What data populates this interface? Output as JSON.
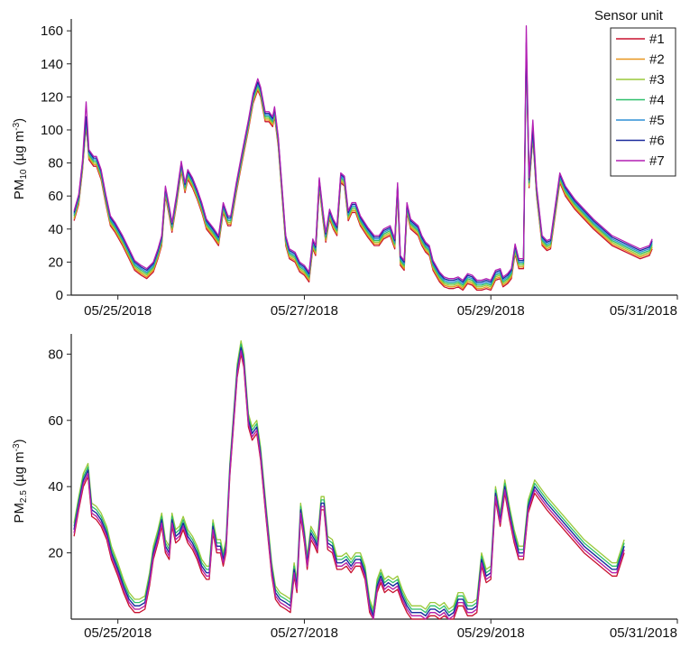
{
  "chart_data": [
    {
      "type": "line",
      "ylabel": {
        "main": "PM",
        "sub": "10",
        "unit_open": " (µg m",
        "unit_sup": "-3",
        "unit_close": ")"
      },
      "ylim": [
        0,
        165
      ],
      "yticks": [
        0,
        20,
        40,
        60,
        80,
        100,
        120,
        140,
        160
      ],
      "xlim": [
        0,
        6.5
      ],
      "xticks": [
        {
          "x": 0.5,
          "label": "05/25/2018"
        },
        {
          "x": 2.5,
          "label": "05/27/2018"
        },
        {
          "x": 4.5,
          "label": "05/29/2018"
        },
        {
          "x": 6.5,
          "label": "05/31/2018"
        }
      ],
      "x_unit": "days from start of 05/24/2018",
      "grid": false,
      "legend": {
        "title": "Sensor unit",
        "position": "top-right"
      },
      "base": [
        [
          0.03,
          45
        ],
        [
          0.08,
          55
        ],
        [
          0.12,
          75
        ],
        [
          0.16,
          103
        ],
        [
          0.19,
          82
        ],
        [
          0.24,
          78
        ],
        [
          0.27,
          78
        ],
        [
          0.32,
          70
        ],
        [
          0.37,
          55
        ],
        [
          0.42,
          42
        ],
        [
          0.47,
          38
        ],
        [
          0.55,
          30
        ],
        [
          0.62,
          22
        ],
        [
          0.68,
          15
        ],
        [
          0.75,
          12
        ],
        [
          0.81,
          10
        ],
        [
          0.88,
          14
        ],
        [
          0.93,
          22
        ],
        [
          0.97,
          30
        ],
        [
          1.01,
          60
        ],
        [
          1.05,
          48
        ],
        [
          1.08,
          38
        ],
        [
          1.13,
          55
        ],
        [
          1.18,
          75
        ],
        [
          1.22,
          62
        ],
        [
          1.25,
          70
        ],
        [
          1.3,
          65
        ],
        [
          1.35,
          58
        ],
        [
          1.4,
          50
        ],
        [
          1.45,
          40
        ],
        [
          1.52,
          35
        ],
        [
          1.58,
          30
        ],
        [
          1.63,
          50
        ],
        [
          1.68,
          42
        ],
        [
          1.71,
          42
        ],
        [
          1.77,
          62
        ],
        [
          1.83,
          80
        ],
        [
          1.9,
          100
        ],
        [
          1.95,
          116
        ],
        [
          2.0,
          124
        ],
        [
          2.03,
          120
        ],
        [
          2.08,
          105
        ],
        [
          2.12,
          105
        ],
        [
          2.16,
          102
        ],
        [
          2.18,
          108
        ],
        [
          2.22,
          90
        ],
        [
          2.3,
          30
        ],
        [
          2.34,
          22
        ],
        [
          2.4,
          20
        ],
        [
          2.45,
          14
        ],
        [
          2.5,
          12
        ],
        [
          2.55,
          8
        ],
        [
          2.59,
          28
        ],
        [
          2.62,
          24
        ],
        [
          2.66,
          65
        ],
        [
          2.7,
          45
        ],
        [
          2.73,
          32
        ],
        [
          2.77,
          46
        ],
        [
          2.81,
          40
        ],
        [
          2.85,
          36
        ],
        [
          2.89,
          68
        ],
        [
          2.93,
          66
        ],
        [
          2.97,
          45
        ],
        [
          3.01,
          50
        ],
        [
          3.05,
          50
        ],
        [
          3.1,
          42
        ],
        [
          3.18,
          35
        ],
        [
          3.25,
          30
        ],
        [
          3.3,
          30
        ],
        [
          3.35,
          34
        ],
        [
          3.42,
          36
        ],
        [
          3.47,
          28
        ],
        [
          3.5,
          62
        ],
        [
          3.53,
          18
        ],
        [
          3.57,
          15
        ],
        [
          3.6,
          50
        ],
        [
          3.64,
          40
        ],
        [
          3.68,
          38
        ],
        [
          3.72,
          36
        ],
        [
          3.76,
          30
        ],
        [
          3.8,
          26
        ],
        [
          3.84,
          24
        ],
        [
          3.88,
          15
        ],
        [
          3.95,
          8
        ],
        [
          4.0,
          5
        ],
        [
          4.05,
          4
        ],
        [
          4.1,
          4
        ],
        [
          4.15,
          5
        ],
        [
          4.2,
          3
        ],
        [
          4.25,
          7
        ],
        [
          4.3,
          6
        ],
        [
          4.35,
          3
        ],
        [
          4.4,
          3
        ],
        [
          4.45,
          4
        ],
        [
          4.5,
          3
        ],
        [
          4.55,
          9
        ],
        [
          4.6,
          10
        ],
        [
          4.63,
          5
        ],
        [
          4.68,
          7
        ],
        [
          4.72,
          10
        ],
        [
          4.76,
          25
        ],
        [
          4.8,
          16
        ],
        [
          4.85,
          16
        ],
        [
          4.88,
          148
        ],
        [
          4.91,
          65
        ],
        [
          4.95,
          95
        ],
        [
          4.99,
          60
        ],
        [
          5.05,
          30
        ],
        [
          5.1,
          27
        ],
        [
          5.14,
          28
        ],
        [
          5.24,
          68
        ],
        [
          5.3,
          60
        ],
        [
          5.4,
          52
        ],
        [
          5.6,
          40
        ],
        [
          5.8,
          30
        ],
        [
          6.1,
          22
        ],
        [
          6.2,
          24
        ],
        [
          6.23,
          28
        ]
      ],
      "series": [
        {
          "name": "#1",
          "color": "#c8102e",
          "offset": 0,
          "spikes": []
        },
        {
          "name": "#2",
          "color": "#e8961e",
          "offset": 1,
          "spikes": []
        },
        {
          "name": "#3",
          "color": "#9ac93a",
          "offset": 2,
          "spikes": []
        },
        {
          "name": "#4",
          "color": "#2dbf6a",
          "offset": 3,
          "spikes": []
        },
        {
          "name": "#5",
          "color": "#2e8fd6",
          "offset": 4,
          "spikes": []
        },
        {
          "name": "#6",
          "color": "#1a2a9c",
          "offset": 5,
          "spikes": []
        },
        {
          "name": "#7",
          "color": "#b31fb3",
          "offset": 6,
          "spikes": [
            [
              0.16,
              117
            ],
            [
              2.0,
              131
            ],
            [
              4.88,
              163
            ],
            [
              4.95,
              106
            ]
          ]
        }
      ]
    },
    {
      "type": "line",
      "ylabel": {
        "main": "PM",
        "sub": "2.5",
        "unit_open": " (µg m",
        "unit_sup": "-3",
        "unit_close": ")"
      },
      "ylim": [
        0,
        85
      ],
      "yticks": [
        20,
        40,
        60,
        80
      ],
      "xlim": [
        0,
        6.5
      ],
      "xticks": [
        {
          "x": 0.5,
          "label": "05/25/2018"
        },
        {
          "x": 2.5,
          "label": "05/27/2018"
        },
        {
          "x": 4.5,
          "label": "05/29/2018"
        },
        {
          "x": 6.5,
          "label": "05/31/2018"
        }
      ],
      "x_unit": "days from start of 05/24/2018",
      "grid": false,
      "base": [
        [
          0.03,
          27
        ],
        [
          0.08,
          35
        ],
        [
          0.13,
          42
        ],
        [
          0.18,
          45
        ],
        [
          0.22,
          33
        ],
        [
          0.27,
          32
        ],
        [
          0.32,
          30
        ],
        [
          0.38,
          26
        ],
        [
          0.43,
          20
        ],
        [
          0.5,
          15
        ],
        [
          0.56,
          10
        ],
        [
          0.62,
          6
        ],
        [
          0.68,
          4
        ],
        [
          0.73,
          4
        ],
        [
          0.79,
          5
        ],
        [
          0.84,
          12
        ],
        [
          0.88,
          20
        ],
        [
          0.93,
          25
        ],
        [
          0.97,
          30
        ],
        [
          1.01,
          22
        ],
        [
          1.05,
          20
        ],
        [
          1.08,
          30
        ],
        [
          1.12,
          25
        ],
        [
          1.16,
          26
        ],
        [
          1.2,
          29
        ],
        [
          1.25,
          25
        ],
        [
          1.3,
          23
        ],
        [
          1.35,
          20
        ],
        [
          1.4,
          16
        ],
        [
          1.45,
          14
        ],
        [
          1.48,
          14
        ],
        [
          1.52,
          28
        ],
        [
          1.56,
          22
        ],
        [
          1.6,
          22
        ],
        [
          1.63,
          18
        ],
        [
          1.66,
          22
        ],
        [
          1.7,
          45
        ],
        [
          1.74,
          60
        ],
        [
          1.78,
          75
        ],
        [
          1.82,
          82
        ],
        [
          1.85,
          78
        ],
        [
          1.9,
          60
        ],
        [
          1.94,
          56
        ],
        [
          1.99,
          58
        ],
        [
          2.03,
          50
        ],
        [
          2.09,
          32
        ],
        [
          2.15,
          15
        ],
        [
          2.19,
          8
        ],
        [
          2.24,
          6
        ],
        [
          2.3,
          5
        ],
        [
          2.35,
          4
        ],
        [
          2.39,
          15
        ],
        [
          2.42,
          10
        ],
        [
          2.46,
          33
        ],
        [
          2.5,
          25
        ],
        [
          2.53,
          17
        ],
        [
          2.57,
          26
        ],
        [
          2.61,
          24
        ],
        [
          2.64,
          22
        ],
        [
          2.68,
          35
        ],
        [
          2.71,
          35
        ],
        [
          2.75,
          23
        ],
        [
          2.8,
          22
        ],
        [
          2.85,
          17
        ],
        [
          2.9,
          17
        ],
        [
          2.95,
          18
        ],
        [
          3.0,
          16
        ],
        [
          3.05,
          18
        ],
        [
          3.1,
          18
        ],
        [
          3.15,
          14
        ],
        [
          3.2,
          4
        ],
        [
          3.24,
          1
        ],
        [
          3.28,
          10
        ],
        [
          3.32,
          13
        ],
        [
          3.36,
          10
        ],
        [
          3.4,
          11
        ],
        [
          3.45,
          10
        ],
        [
          3.5,
          11
        ],
        [
          3.55,
          7
        ],
        [
          3.6,
          4
        ],
        [
          3.65,
          2
        ],
        [
          3.7,
          2
        ],
        [
          3.75,
          2
        ],
        [
          3.8,
          1
        ],
        [
          3.85,
          3
        ],
        [
          3.9,
          3
        ],
        [
          3.95,
          2
        ],
        [
          4.0,
          3
        ],
        [
          4.05,
          1
        ],
        [
          4.1,
          2
        ],
        [
          4.15,
          6
        ],
        [
          4.2,
          6
        ],
        [
          4.25,
          3
        ],
        [
          4.3,
          3
        ],
        [
          4.35,
          4
        ],
        [
          4.4,
          18
        ],
        [
          4.45,
          13
        ],
        [
          4.5,
          14
        ],
        [
          4.55,
          38
        ],
        [
          4.6,
          30
        ],
        [
          4.65,
          40
        ],
        [
          4.7,
          32
        ],
        [
          4.75,
          25
        ],
        [
          4.8,
          20
        ],
        [
          4.85,
          20
        ],
        [
          4.9,
          34
        ],
        [
          4.97,
          40
        ],
        [
          5.1,
          35
        ],
        [
          5.5,
          22
        ],
        [
          5.8,
          15
        ],
        [
          5.85,
          15
        ],
        [
          5.93,
          22
        ]
      ],
      "series": [
        {
          "name": "#1",
          "color": "#c8102e",
          "offset": -2,
          "spikes": []
        },
        {
          "name": "#2",
          "color": "#e8961e",
          "offset": -1,
          "spikes": []
        },
        {
          "name": "#3",
          "color": "#9ac93a",
          "offset": 2,
          "spikes": []
        },
        {
          "name": "#4",
          "color": "#2dbf6a",
          "offset": 1,
          "spikes": []
        },
        {
          "name": "#5",
          "color": "#2e8fd6",
          "offset": 0,
          "spikes": []
        },
        {
          "name": "#6",
          "color": "#1a2a9c",
          "offset": 0,
          "spikes": []
        },
        {
          "name": "#7",
          "color": "#b31fb3",
          "offset": -1,
          "spikes": []
        }
      ]
    }
  ]
}
